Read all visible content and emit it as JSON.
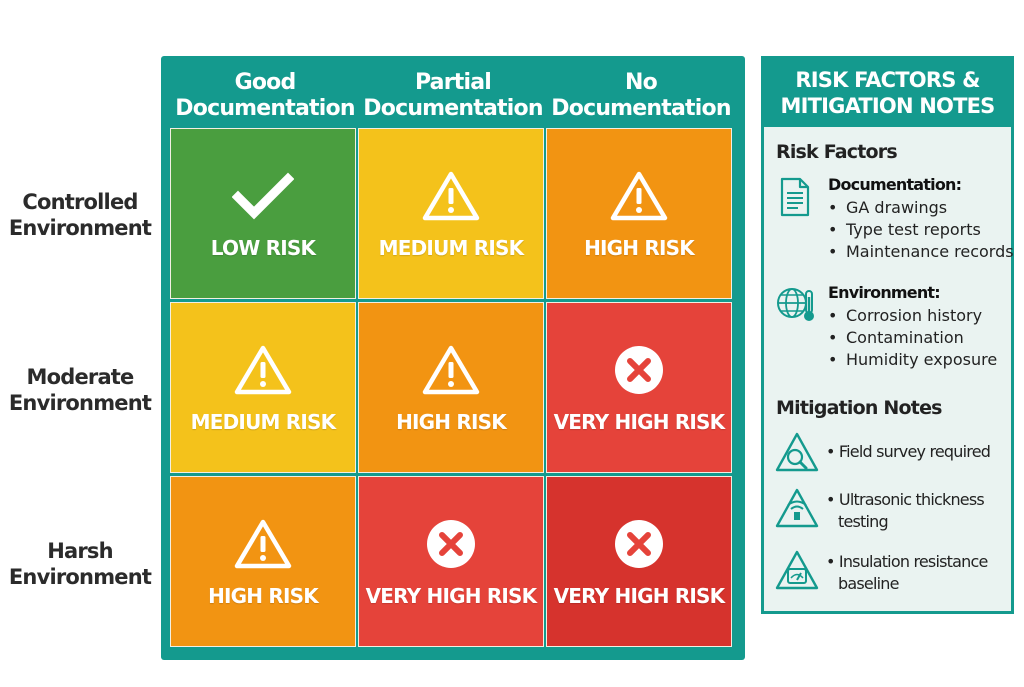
{
  "matrix": {
    "columns": [
      "Good\nDocumentation",
      "Partial\nDocumentation",
      "No\nDocumentation"
    ],
    "column_lines": [
      [
        "Good",
        "Documentation"
      ],
      [
        "Partial",
        "Documentation"
      ],
      [
        "No",
        "Documentation"
      ]
    ],
    "rows": [
      {
        "lines": [
          "Controlled",
          "Environment"
        ]
      },
      {
        "lines": [
          "Moderate",
          "Environment"
        ]
      },
      {
        "lines": [
          "Harsh",
          "Environment"
        ]
      }
    ],
    "cells": [
      [
        {
          "label": "LOW RISK",
          "icon": "check-icon",
          "color": "#4a9e3f"
        },
        {
          "label": "MEDIUM RISK",
          "icon": "warning-icon",
          "color": "#f4c21b"
        },
        {
          "label": "HIGH RISK",
          "icon": "warning-icon",
          "color": "#f29412"
        }
      ],
      [
        {
          "label": "MEDIUM RISK",
          "icon": "warning-icon",
          "color": "#f4c21b"
        },
        {
          "label": "HIGH RISK",
          "icon": "warning-icon",
          "color": "#f29412"
        },
        {
          "label": "VERY HIGH RISK",
          "icon": "x-circle-icon",
          "color": "#e5433a"
        }
      ],
      [
        {
          "label": "HIGH RISK",
          "icon": "warning-icon",
          "color": "#f29412"
        },
        {
          "label": "VERY HIGH RISK",
          "icon": "x-circle-icon",
          "color": "#e5433a"
        },
        {
          "label": "VERY HIGH RISK",
          "icon": "x-circle-icon",
          "color": "#d6332d"
        }
      ]
    ]
  },
  "panel": {
    "title_lines": [
      "RISK FACTORS &",
      "MITIGATION NOTES"
    ],
    "risk_factors_title": "Risk Factors",
    "groups": [
      {
        "title": "Documentation:",
        "icon": "document-icon",
        "items": [
          "GA drawings",
          "Type test reports",
          "Maintenance records"
        ]
      },
      {
        "title": "Environment:",
        "icon": "globe-thermometer-icon",
        "items": [
          "Corrosion history",
          "Contamination",
          "Humidity exposure"
        ]
      }
    ],
    "mitigation_title": "Mitigation Notes",
    "mitigations": [
      {
        "icon": "search-triangle-icon",
        "lines": [
          "• Field survey required"
        ]
      },
      {
        "icon": "ultrasonic-triangle-icon",
        "lines": [
          "• Ultrasonic thickness",
          "testing"
        ]
      },
      {
        "icon": "meter-triangle-icon",
        "lines": [
          "• Insulation resistance",
          "baseline"
        ]
      }
    ]
  },
  "colors": {
    "teal": "#149a8e",
    "green": "#4a9e3f",
    "yellow": "#f4c21b",
    "orange": "#f29412",
    "red": "#e5433a",
    "dark_red": "#d6332d"
  }
}
